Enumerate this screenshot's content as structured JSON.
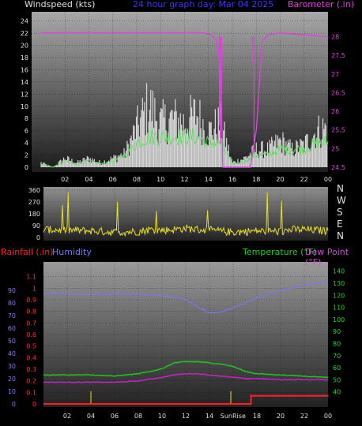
{
  "header": {
    "left_label": "Windspeed (kts)",
    "center_label": "24 hour graph day:  Mar 04 2025",
    "right_label": "Barometer (.in)"
  },
  "bottom_header": {
    "rainfall_label": "Rainfall (.in)",
    "humidity_label": "Humidity",
    "temperature_label": "Temperature (°F)",
    "dewpoint_label": "Dew Point (°F)"
  },
  "direction_labels": [
    "N",
    "W",
    "S",
    "E",
    "N"
  ],
  "colors": {
    "windspeed": "#d8d8d8",
    "wind_avg": "#60e060",
    "barometer": "#e040e0",
    "direction": "#e8e020",
    "rainfall": "#ff2020",
    "humidity": "#7878f0",
    "temperature": "#20c020",
    "dewpoint": "#d020d0",
    "sun_markers": "#d0c020",
    "header_center": "#4040ff"
  },
  "chart_data": [
    {
      "type": "bar",
      "name": "wind",
      "x": [
        0,
        1,
        2,
        3,
        4,
        5,
        6,
        7,
        8,
        9,
        10,
        11,
        12,
        13,
        14,
        15,
        16,
        17,
        18,
        19,
        20,
        21,
        22,
        23,
        24
      ],
      "series": [
        {
          "values": [
            1,
            0,
            2,
            1,
            2,
            1,
            2,
            3,
            9,
            14,
            10,
            11,
            10,
            12,
            8,
            10,
            1,
            2,
            4,
            4,
            6,
            4,
            5,
            8,
            9
          ]
        },
        {
          "values": [
            0.5,
            0,
            1,
            0.5,
            1,
            0.5,
            1,
            2,
            4,
            5,
            5,
            5,
            5,
            5,
            4,
            4,
            0.5,
            1,
            2,
            2,
            3,
            3,
            3,
            4,
            4
          ]
        }
      ],
      "xlim": [
        0,
        24
      ],
      "ylim": [
        0,
        25
      ],
      "x_ticks": [
        "02",
        "04",
        "06",
        "08",
        "10",
        "12",
        "14",
        "16",
        "18",
        "20",
        "22",
        "00"
      ],
      "y_ticks": [
        0,
        2,
        4,
        6,
        8,
        10,
        12,
        14,
        16,
        18,
        20,
        22,
        24
      ]
    },
    {
      "type": "line",
      "name": "barometer",
      "x": [
        0,
        4,
        8,
        10,
        12,
        13.5,
        14.2,
        14.7,
        15.0,
        15.2,
        15.6,
        16.0,
        16.5,
        17.0,
        17.5,
        18.0,
        18.5,
        19,
        20,
        22,
        24
      ],
      "values": [
        28.1,
        28.1,
        28.1,
        28.1,
        28.1,
        28.1,
        28.05,
        27.9,
        27.3,
        24.5,
        24.5,
        24.5,
        24.5,
        24.5,
        24.5,
        25.5,
        27.9,
        28.05,
        28.1,
        28.05,
        28.0
      ],
      "ylim": [
        24.5,
        28.5
      ],
      "y_ticks": [
        "24.5",
        "25",
        "25.5",
        "26",
        "26.5",
        "27",
        "27.5",
        "28"
      ]
    },
    {
      "type": "line",
      "name": "wind-direction",
      "x": [
        0,
        2,
        4,
        6,
        8,
        9,
        10,
        11,
        12,
        13,
        14,
        16,
        18,
        20,
        21,
        22,
        24
      ],
      "values": [
        60,
        55,
        50,
        40,
        45,
        60,
        55,
        60,
        70,
        60,
        55,
        40,
        50,
        45,
        60,
        60,
        50
      ],
      "ylim": [
        0,
        360
      ],
      "y_ticks": [
        0,
        90,
        180,
        270,
        360
      ]
    },
    {
      "type": "line",
      "name": "rainfall",
      "x": [
        0,
        17.5,
        18.0,
        24
      ],
      "values": [
        0,
        0,
        0.07,
        0.07
      ],
      "ylim": [
        0,
        1.2
      ],
      "y_ticks": [
        "0",
        "0.1",
        "0.2",
        "0.3",
        "0.4",
        "0.5",
        "0.6",
        "0.7",
        "0.8",
        "0.9",
        "1",
        "1.1"
      ]
    },
    {
      "type": "line",
      "name": "humidity",
      "x": [
        0,
        2,
        4,
        6,
        8,
        10,
        12,
        13,
        14,
        15,
        16,
        17,
        18,
        20,
        22,
        24
      ],
      "values": [
        88,
        87,
        87,
        87,
        87,
        86,
        83,
        77,
        72,
        73,
        76,
        80,
        84,
        90,
        94,
        97
      ],
      "ylim": [
        0,
        110
      ],
      "y_ticks": [
        0,
        10,
        20,
        30,
        40,
        50,
        60,
        70,
        80,
        90
      ]
    },
    {
      "type": "line",
      "name": "temperature",
      "x": [
        0,
        2,
        4,
        6,
        8,
        10,
        11,
        12,
        13,
        14,
        15,
        16,
        17,
        18,
        20,
        22,
        24
      ],
      "values": [
        54,
        54,
        54,
        53,
        55,
        59,
        64,
        65,
        65,
        64,
        63,
        61,
        57,
        55,
        54,
        53,
        52
      ],
      "ylim": [
        30,
        145
      ],
      "y_ticks": [
        40,
        50,
        60,
        70,
        80,
        90,
        100,
        110,
        120,
        130,
        140
      ]
    },
    {
      "type": "line",
      "name": "dew-point",
      "x": [
        0,
        2,
        4,
        6,
        8,
        10,
        11,
        12,
        13,
        14,
        15,
        16,
        17,
        18,
        20,
        22,
        24
      ],
      "values": [
        48,
        48,
        48,
        48,
        49,
        52,
        54,
        55,
        55,
        54,
        53,
        52,
        51,
        51,
        50,
        50,
        50
      ],
      "ylim": [
        30,
        145
      ]
    }
  ],
  "bottom_x_ticks": [
    "02",
    "04",
    "06",
    "08",
    "10",
    "12",
    "14",
    "Sun",
    "Rise",
    "18",
    "20",
    "22",
    "00"
  ]
}
